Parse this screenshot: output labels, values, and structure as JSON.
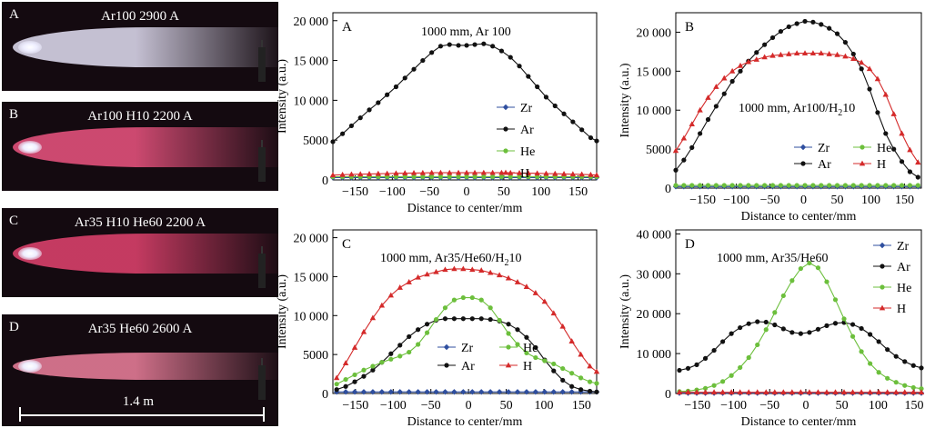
{
  "photos": [
    {
      "label": "A",
      "caption": "Ar100 2900 A",
      "color": "#d8d4e8"
    },
    {
      "label": "B",
      "caption": "Ar100 H10 2200 A",
      "color": "#e0507a"
    },
    {
      "label": "C",
      "caption": "Ar35 H10 He60 2200 A",
      "color": "#d8406a"
    },
    {
      "label": "D",
      "caption": "Ar35 He60 2600 A",
      "color": "#e27a95"
    }
  ],
  "scale_label": "1.4 m",
  "colors": {
    "Zr": "#2f4f9f",
    "Ar": "#111111",
    "He": "#6cbf3c",
    "H": "#d42a2a"
  },
  "chart_data": [
    {
      "type": "line",
      "panel": "A",
      "title": "1000 mm, Ar 100",
      "xlabel": "Distance to center/mm",
      "ylabel": "Intensity (a.u.)",
      "xlim": [
        -180,
        175
      ],
      "ylim": [
        0,
        21000
      ],
      "yticks": [
        0,
        5000,
        10000,
        15000,
        20000
      ],
      "ytick_labels": [
        "0",
        "5000",
        "10 000",
        "15 000",
        "20 000"
      ],
      "xticks": [
        -150,
        -100,
        -50,
        0,
        50,
        100,
        150
      ],
      "xtick_labels": [
        "−150",
        "−100",
        "−50",
        "0",
        "50",
        "100",
        "150"
      ],
      "x": [
        -180,
        -167,
        -155,
        -143,
        -131,
        -119,
        -107,
        -95,
        -83,
        -71,
        -59,
        -47,
        -35,
        -23,
        -11,
        0,
        11,
        23,
        35,
        47,
        59,
        71,
        83,
        95,
        107,
        119,
        131,
        143,
        155,
        167,
        175
      ],
      "series": [
        {
          "name": "Zr",
          "values": [
            300,
            300,
            300,
            300,
            300,
            300,
            300,
            300,
            300,
            300,
            300,
            300,
            300,
            300,
            300,
            300,
            300,
            300,
            300,
            300,
            300,
            300,
            300,
            300,
            300,
            300,
            300,
            300,
            300,
            300,
            300
          ]
        },
        {
          "name": "Ar",
          "values": [
            4800,
            5800,
            6800,
            7800,
            8800,
            9700,
            10700,
            11700,
            12800,
            13900,
            15000,
            16000,
            16800,
            17000,
            16900,
            16900,
            17000,
            17100,
            16800,
            16200,
            15400,
            14300,
            13000,
            11700,
            10400,
            9300,
            8300,
            7300,
            6300,
            5300,
            4900
          ]
        },
        {
          "name": "He",
          "values": [
            400,
            400,
            400,
            400,
            400,
            400,
            400,
            400,
            400,
            400,
            400,
            400,
            400,
            400,
            400,
            400,
            400,
            400,
            400,
            400,
            400,
            400,
            400,
            400,
            400,
            400,
            400,
            400,
            400,
            400,
            400
          ]
        },
        {
          "name": "H",
          "values": [
            600,
            650,
            700,
            720,
            750,
            780,
            800,
            830,
            850,
            870,
            880,
            900,
            900,
            900,
            900,
            900,
            900,
            900,
            900,
            900,
            880,
            870,
            850,
            830,
            800,
            780,
            750,
            720,
            700,
            650,
            600
          ]
        }
      ],
      "legend": [
        "Zr",
        "Ar",
        "He",
        "H"
      ],
      "legend_loc": "center-right, single column"
    },
    {
      "type": "line",
      "panel": "B",
      "title": "1000 mm, Ar100/H‘10",
      "title_parts": {
        "main": "1000 mm, Ar100/H",
        "sub": "2",
        "tail": "10"
      },
      "xlabel": "Distance to center/mm",
      "ylabel": "Intensity (a.u.)",
      "xlim": [
        -190,
        175
      ],
      "ylim": [
        0,
        22500
      ],
      "yticks": [
        0,
        5000,
        10000,
        15000,
        20000
      ],
      "ytick_labels": [
        "0",
        "5000",
        "10 000",
        "15 000",
        "20 000"
      ],
      "xticks": [
        -150,
        -100,
        -50,
        0,
        50,
        100,
        150
      ],
      "xtick_labels": [
        "−150",
        "−100",
        "−50",
        "0",
        "50",
        "100",
        "150"
      ],
      "x": [
        -190,
        -178,
        -166,
        -154,
        -142,
        -130,
        -118,
        -106,
        -94,
        -82,
        -70,
        -58,
        -46,
        -34,
        -22,
        -10,
        2,
        14,
        26,
        38,
        50,
        62,
        74,
        86,
        98,
        110,
        122,
        134,
        146,
        158,
        170
      ],
      "series": [
        {
          "name": "Zr",
          "values": [
            200,
            200,
            200,
            200,
            200,
            200,
            200,
            200,
            200,
            200,
            200,
            200,
            200,
            200,
            200,
            200,
            200,
            200,
            200,
            200,
            200,
            200,
            200,
            200,
            200,
            200,
            200,
            200,
            200,
            200,
            200
          ]
        },
        {
          "name": "Ar",
          "values": [
            2300,
            3600,
            5200,
            7000,
            8800,
            10500,
            12100,
            13700,
            15000,
            16300,
            17400,
            18400,
            19300,
            20100,
            20700,
            21100,
            21400,
            21300,
            21000,
            20500,
            19800,
            18700,
            17200,
            15300,
            12700,
            9700,
            7000,
            5000,
            3400,
            2100,
            1400
          ]
        },
        {
          "name": "He",
          "values": [
            350,
            350,
            350,
            350,
            350,
            350,
            350,
            350,
            350,
            350,
            350,
            350,
            350,
            350,
            350,
            350,
            350,
            350,
            350,
            350,
            350,
            350,
            350,
            350,
            350,
            350,
            350,
            350,
            350,
            350,
            350
          ]
        },
        {
          "name": "H",
          "values": [
            4800,
            6400,
            8200,
            10000,
            11600,
            13000,
            14100,
            15000,
            15700,
            16200,
            16500,
            16800,
            17000,
            17100,
            17200,
            17300,
            17300,
            17300,
            17300,
            17200,
            17100,
            16900,
            16600,
            16100,
            15300,
            14000,
            12000,
            9500,
            7000,
            4900,
            3300
          ]
        }
      ],
      "legend": [
        "Zr",
        "He",
        "Ar",
        "H"
      ],
      "legend_loc": "lower-center, two columns"
    },
    {
      "type": "line",
      "panel": "C",
      "title": "1000 mm, Ar35/He60/H‘10",
      "title_parts": {
        "main": "1000 mm, Ar35/He60/H",
        "sub": "2",
        "tail": "10"
      },
      "xlabel": "Distance to center/mm",
      "ylabel": "Intensity (a.u.)",
      "xlim": [
        -180,
        170
      ],
      "ylim": [
        0,
        21000
      ],
      "yticks": [
        0,
        5000,
        10000,
        15000,
        20000
      ],
      "ytick_labels": [
        "0",
        "5000",
        "10 000",
        "15 000",
        "20 000"
      ],
      "xticks": [
        -150,
        -100,
        -50,
        0,
        50,
        100,
        150
      ],
      "xtick_labels": [
        "−150",
        "−100",
        "−50",
        "0",
        "50",
        "100",
        "150"
      ],
      "x": [
        -175,
        -163,
        -151,
        -139,
        -127,
        -115,
        -103,
        -91,
        -79,
        -67,
        -55,
        -43,
        -31,
        -19,
        -7,
        5,
        17,
        29,
        41,
        53,
        65,
        77,
        89,
        101,
        113,
        125,
        137,
        149,
        161,
        170
      ],
      "series": [
        {
          "name": "Zr",
          "values": [
            200,
            200,
            200,
            200,
            200,
            200,
            200,
            200,
            200,
            200,
            200,
            200,
            200,
            200,
            200,
            200,
            200,
            200,
            200,
            200,
            200,
            200,
            200,
            200,
            200,
            200,
            200,
            200,
            200,
            200
          ]
        },
        {
          "name": "Ar",
          "values": [
            500,
            900,
            1500,
            2200,
            3000,
            4000,
            5100,
            6200,
            7300,
            8200,
            8900,
            9400,
            9600,
            9600,
            9600,
            9600,
            9600,
            9500,
            9300,
            8900,
            8200,
            7200,
            5900,
            4300,
            2900,
            1700,
            900,
            500,
            300,
            200
          ]
        },
        {
          "name": "He",
          "values": [
            1200,
            1800,
            2400,
            3000,
            3500,
            4000,
            4400,
            4800,
            5300,
            6300,
            7800,
            9500,
            11000,
            12000,
            12300,
            12300,
            12000,
            11000,
            9400,
            7700,
            6300,
            5200,
            4600,
            4200,
            3800,
            3200,
            2600,
            2000,
            1500,
            1300
          ]
        },
        {
          "name": "H",
          "values": [
            2000,
            3900,
            5900,
            7900,
            9700,
            11300,
            12600,
            13600,
            14300,
            14900,
            15300,
            15600,
            15900,
            16000,
            16000,
            15900,
            15800,
            15500,
            15200,
            14800,
            14300,
            13700,
            12900,
            11800,
            10300,
            8600,
            6700,
            5000,
            3500,
            2800
          ]
        }
      ],
      "legend": [
        "Zr",
        "He",
        "Ar",
        "H"
      ],
      "legend_loc": "lower-center, two columns"
    },
    {
      "type": "line",
      "panel": "D",
      "title": "1000 mm, Ar35/He60",
      "xlabel": "Distance to center/mm",
      "ylabel": "Intensity (a.u.)",
      "xlim": [
        -180,
        160
      ],
      "ylim": [
        0,
        41000
      ],
      "yticks": [
        0,
        10000,
        20000,
        30000,
        40000
      ],
      "ytick_labels": [
        "0",
        "10 000",
        "20 000",
        "30 000",
        "40 000"
      ],
      "xticks": [
        -150,
        -100,
        -50,
        0,
        50,
        100,
        150
      ],
      "xtick_labels": [
        "−150",
        "−100",
        "−50",
        "0",
        "50",
        "100",
        "150"
      ],
      "x": [
        -175,
        -163,
        -151,
        -139,
        -127,
        -115,
        -103,
        -91,
        -79,
        -67,
        -55,
        -43,
        -31,
        -19,
        -7,
        5,
        17,
        29,
        41,
        53,
        65,
        77,
        89,
        101,
        113,
        125,
        137,
        149,
        160
      ],
      "series": [
        {
          "name": "Zr",
          "values": [
            100,
            100,
            100,
            100,
            100,
            100,
            100,
            100,
            100,
            100,
            100,
            100,
            100,
            100,
            100,
            100,
            100,
            100,
            100,
            100,
            100,
            100,
            100,
            100,
            100,
            100,
            100,
            100,
            100
          ]
        },
        {
          "name": "Ar",
          "values": [
            5800,
            6300,
            7200,
            8800,
            10800,
            13000,
            15000,
            16500,
            17500,
            18000,
            17900,
            17200,
            16200,
            15300,
            15000,
            15300,
            16100,
            17000,
            17600,
            17800,
            17300,
            16300,
            14800,
            13000,
            11000,
            9300,
            8000,
            7000,
            6400
          ]
        },
        {
          "name": "He",
          "values": [
            500,
            600,
            900,
            1300,
            2000,
            3000,
            4500,
            6500,
            9000,
            12200,
            16000,
            20300,
            24500,
            28300,
            31300,
            32700,
            31500,
            28000,
            23500,
            18700,
            14300,
            10500,
            7500,
            5300,
            3800,
            2800,
            2000,
            1500,
            1200
          ]
        },
        {
          "name": "H",
          "values": [
            300,
            300,
            300,
            300,
            300,
            300,
            300,
            300,
            300,
            300,
            300,
            300,
            300,
            300,
            300,
            300,
            300,
            300,
            300,
            300,
            300,
            300,
            300,
            300,
            300,
            300,
            300,
            300,
            300
          ]
        }
      ],
      "legend": [
        "Zr",
        "Ar",
        "He",
        "H"
      ],
      "legend_loc": "top-right, single column"
    }
  ]
}
